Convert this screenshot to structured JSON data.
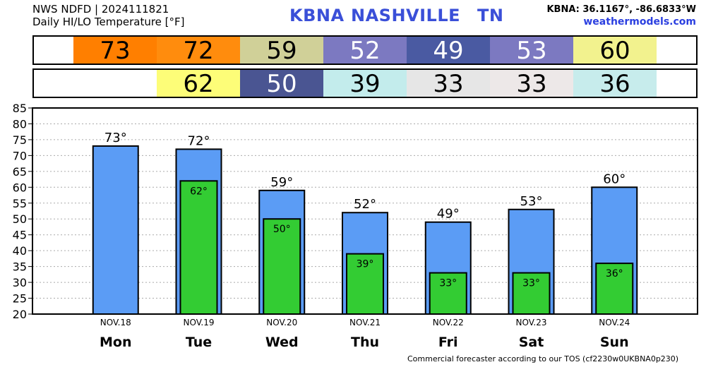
{
  "header": {
    "source_line": "NWS NDFD | 2024111821",
    "product_line": "Daily HI/LO Temperature [°F]",
    "station_id": "KBNA",
    "station_city": "NASHVILLE",
    "station_state": "TN",
    "coords": "KBNA: 36.1167°, -86.6833°W",
    "site": "weathermodels.com"
  },
  "hi_strip": [
    {
      "value": "73",
      "color": "#ff7f00"
    },
    {
      "value": "72",
      "color": "#ff8c0d"
    },
    {
      "value": "59",
      "color": "#d0d098"
    },
    {
      "value": "52",
      "color": "#7c79c1"
    },
    {
      "value": "49",
      "color": "#4a5aa2"
    },
    {
      "value": "53",
      "color": "#7c79c1"
    },
    {
      "value": "60",
      "color": "#f2f28e"
    }
  ],
  "lo_strip": [
    {
      "value": "",
      "color": "#ffffff"
    },
    {
      "value": "62",
      "color": "#fdfd78"
    },
    {
      "value": "50",
      "color": "#4a5592"
    },
    {
      "value": "39",
      "color": "#c3ecec"
    },
    {
      "value": "33",
      "color": "#e6e6e6"
    },
    {
      "value": "33",
      "color": "#ede8e8"
    },
    {
      "value": "36",
      "color": "#c7ecec"
    }
  ],
  "chart_data": {
    "type": "bar",
    "categories": [
      "Mon",
      "Tue",
      "Wed",
      "Thu",
      "Fri",
      "Sat",
      "Sun"
    ],
    "dates": [
      "NOV.18",
      "NOV.19",
      "NOV.20",
      "NOV.21",
      "NOV.22",
      "NOV.23",
      "NOV.24"
    ],
    "series": [
      {
        "values": [
          73,
          72,
          59,
          52,
          49,
          53,
          60
        ],
        "labels": [
          "73°",
          "72°",
          "59°",
          "52°",
          "49°",
          "53°",
          "60°"
        ],
        "color": "#5b9cf5"
      },
      {
        "values": [
          null,
          62,
          50,
          39,
          33,
          33,
          36
        ],
        "labels": [
          "",
          "62°",
          "50°",
          "39°",
          "33°",
          "33°",
          "36°"
        ],
        "color": "#33cc33"
      }
    ],
    "ylim": [
      20,
      85
    ],
    "yticks": [
      "20",
      "25",
      "30",
      "35",
      "40",
      "45",
      "50",
      "55",
      "60",
      "65",
      "70",
      "75",
      "80",
      "85"
    ],
    "grid": true
  },
  "footer": "Commercial forecaster according to our TOS (cf2230w0UKBNA0p230)"
}
